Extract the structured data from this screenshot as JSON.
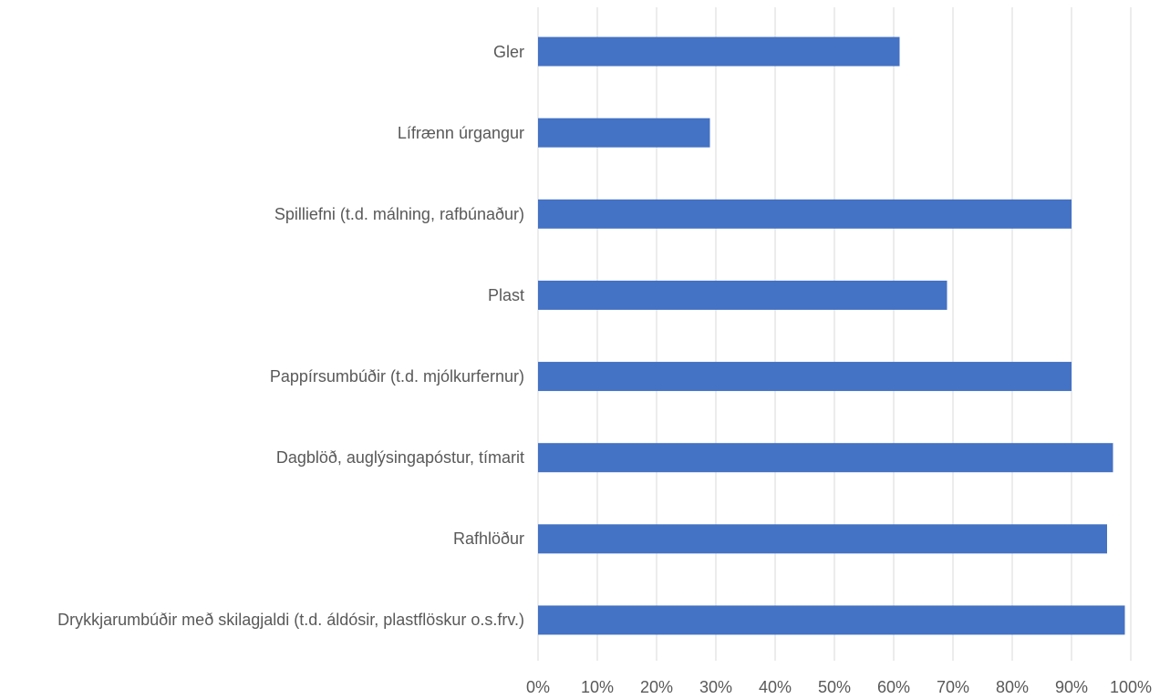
{
  "chart_data": {
    "type": "barh",
    "categories": [
      "Gler",
      "Lífrænn úrgangur",
      "Spilliefni (t.d. málning, rafbúnaður)",
      "Plast",
      "Pappírsumbúðir (t.d. mjólkurfernur)",
      "Dagblöð, auglýsingapóstur, tímarit",
      "Rafhlöður",
      "Drykkjarumbúðir með skilagjaldi (t.d. áldósir, plastflöskur o.s.frv.)"
    ],
    "values": [
      61,
      29,
      90,
      69,
      90,
      97,
      96,
      99
    ],
    "color": "#4472c4",
    "xlim": [
      0,
      100
    ],
    "xticks": [
      {
        "value": 0,
        "label": "0%"
      },
      {
        "value": 10,
        "label": "10%"
      },
      {
        "value": 20,
        "label": "20%"
      },
      {
        "value": 30,
        "label": "30%"
      },
      {
        "value": 40,
        "label": "40%"
      },
      {
        "value": 50,
        "label": "50%"
      },
      {
        "value": 60,
        "label": "60%"
      },
      {
        "value": 70,
        "label": "70%"
      },
      {
        "value": 80,
        "label": "80%"
      },
      {
        "value": 90,
        "label": "90%"
      },
      {
        "value": 100,
        "label": "100%"
      }
    ],
    "grid": true
  }
}
